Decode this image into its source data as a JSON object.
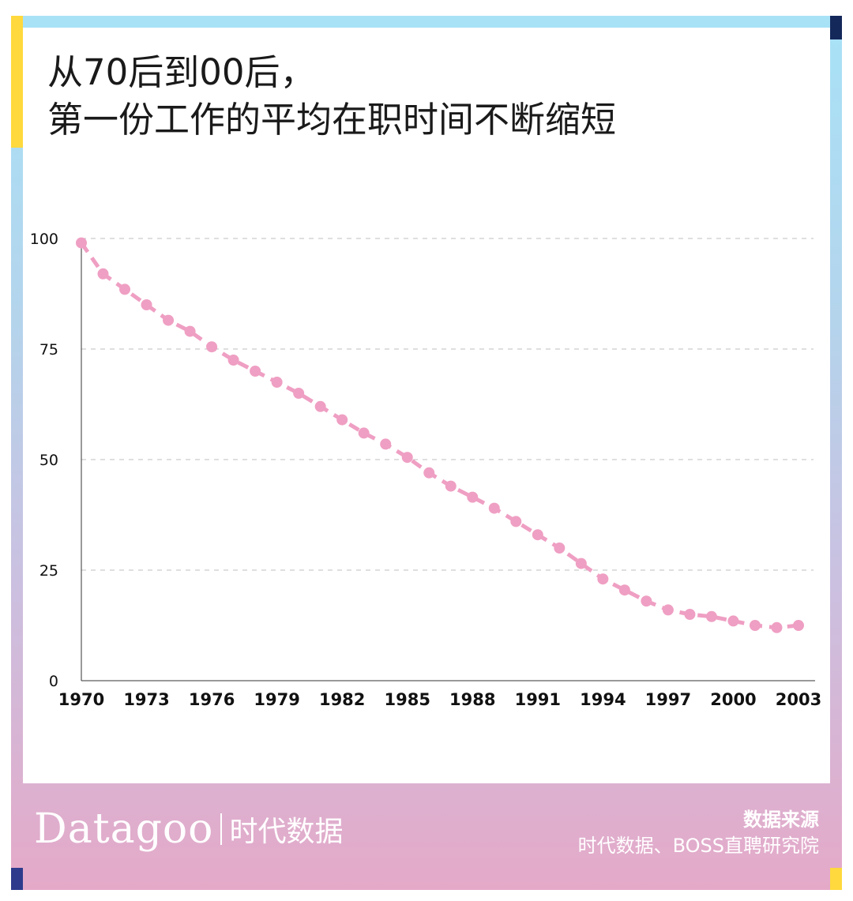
{
  "title": {
    "line1": "从70后到00后，",
    "line2": "第一份工作的平均在职时间不断缩短"
  },
  "brand": {
    "name_en": "Datagoo",
    "name_cn": "时代数据"
  },
  "source": {
    "label": "数据来源",
    "text": "时代数据、BOSS直聘研究院"
  },
  "colors": {
    "series": "#ef9fc3",
    "axis": "#333333",
    "grid": "#bfbfbf"
  },
  "chart_data": {
    "type": "line",
    "title": "从70后到00后，第一份工作的平均在职时间不断缩短",
    "xlabel": "",
    "ylabel": "",
    "xlim": [
      1970,
      2003
    ],
    "ylim": [
      0,
      100
    ],
    "x_ticks": [
      1970,
      1973,
      1976,
      1979,
      1982,
      1985,
      1988,
      1991,
      1994,
      1997,
      2000,
      2003
    ],
    "y_ticks": [
      0,
      25,
      50,
      75,
      100
    ],
    "grid": "horizontal dashed",
    "legend": "none",
    "line_style": "dashed with circular markers",
    "series": [
      {
        "x": [
          1970,
          1971,
          1972,
          1973,
          1974,
          1975,
          1976,
          1977,
          1978,
          1979,
          1980,
          1981,
          1982,
          1983,
          1984,
          1985,
          1986,
          1987,
          1988,
          1989,
          1990,
          1991,
          1992,
          1993,
          1994,
          1995,
          1996,
          1997,
          1998,
          1999,
          2000,
          2001,
          2002,
          2003
        ],
        "values": [
          99,
          92,
          88.5,
          85,
          81.5,
          79,
          75.5,
          72.5,
          70,
          67.5,
          65,
          62,
          59,
          56,
          53.5,
          50.5,
          47,
          44,
          41.5,
          39,
          36,
          33,
          30,
          26.5,
          23,
          20.5,
          18,
          16,
          15,
          14.5,
          13.5,
          12.5,
          12,
          12.5
        ]
      }
    ]
  }
}
